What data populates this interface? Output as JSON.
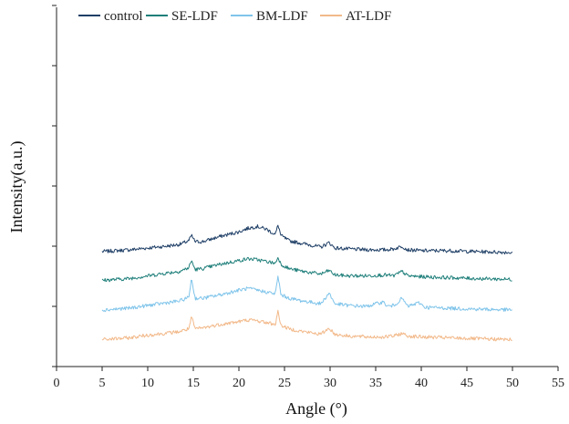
{
  "chart_data": {
    "type": "line",
    "title": "",
    "xlabel": "Angle (°)",
    "ylabel": "Intensity(a.u.)",
    "xlim": [
      0,
      55
    ],
    "xticks": [
      "0",
      "5",
      "10",
      "15",
      "20",
      "25",
      "30",
      "35",
      "40",
      "45",
      "50",
      "55"
    ],
    "y_ticks_labeled": false,
    "legend_position": "top-left",
    "series": [
      {
        "name": "control",
        "color": "#1f3f66",
        "x": [
          5,
          8,
          10,
          12,
          13.5,
          14.5,
          14.8,
          15.2,
          16,
          18,
          20,
          21,
          22,
          23,
          24,
          24.3,
          24.6,
          25.5,
          27,
          29,
          29.9,
          30.5,
          32,
          34,
          36,
          37,
          37.9,
          38.5,
          40,
          43,
          46,
          50
        ],
        "y": [
          128,
          130,
          132,
          134,
          136,
          140,
          146,
          139,
          139,
          145,
          150,
          154,
          156,
          153,
          147,
          158,
          146,
          140,
          137,
          133,
          138,
          132,
          131,
          130,
          130,
          131,
          134,
          130,
          129,
          129,
          128,
          127
        ]
      },
      {
        "name": "SE-LDF",
        "color": "#1f7f7a",
        "x": [
          5,
          8,
          10,
          12,
          13.5,
          14.5,
          14.8,
          15.2,
          16,
          18,
          20,
          21,
          22,
          23,
          24,
          24.3,
          24.6,
          25.5,
          27,
          29,
          29.9,
          30.5,
          32,
          34,
          36,
          37,
          37.9,
          38.5,
          40,
          43,
          46,
          50
        ],
        "y": [
          96,
          98,
          101,
          104,
          106,
          110,
          118,
          108,
          109,
          114,
          118,
          120,
          119,
          117,
          115,
          122,
          114,
          109,
          106,
          103,
          107,
          102,
          101,
          101,
          102,
          101,
          106,
          101,
          100,
          99,
          98,
          97
        ]
      },
      {
        "name": "BM-LDF",
        "color": "#7fc4ea",
        "x": [
          5,
          8,
          10,
          12,
          13.5,
          14.5,
          14.8,
          15.2,
          16,
          18,
          20,
          21,
          22,
          23,
          24,
          24.3,
          24.6,
          25.5,
          27,
          29,
          29.9,
          30.5,
          32,
          34,
          35.8,
          36.3,
          37,
          37.9,
          38.5,
          39.8,
          40.4,
          43,
          46,
          50
        ],
        "y": [
          63,
          65,
          68,
          71,
          73,
          77,
          98,
          76,
          76,
          80,
          85,
          87,
          85,
          83,
          81,
          101,
          80,
          76,
          73,
          70,
          82,
          70,
          68,
          67,
          72,
          67,
          68,
          76,
          67,
          71,
          66,
          65,
          64,
          63
        ]
      },
      {
        "name": "AT-LDF",
        "color": "#f2b98a",
        "x": [
          5,
          8,
          10,
          12,
          13.5,
          14.5,
          14.8,
          15.2,
          16,
          18,
          20,
          21,
          22,
          23,
          24,
          24.3,
          24.6,
          25.5,
          27,
          29,
          29.9,
          30.5,
          32,
          34,
          36,
          37,
          37.9,
          38.5,
          40,
          43,
          46,
          50
        ],
        "y": [
          30,
          32,
          35,
          37,
          39,
          42,
          55,
          42,
          43,
          47,
          50,
          52,
          51,
          49,
          47,
          62,
          46,
          42,
          39,
          36,
          43,
          36,
          34,
          33,
          33,
          34,
          37,
          34,
          33,
          32,
          31,
          30
        ]
      }
    ]
  }
}
